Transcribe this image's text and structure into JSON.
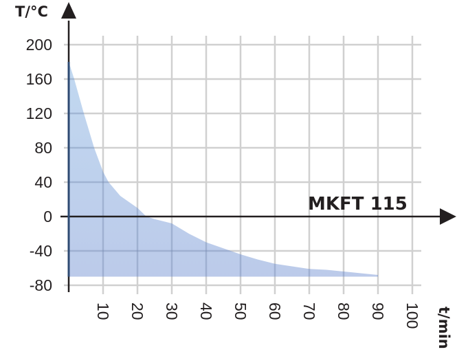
{
  "chart_data": {
    "type": "area",
    "title": "",
    "series_label": "MKFT 115",
    "xlabel": "t/min",
    "ylabel": "T/°C",
    "xlim": [
      0,
      100
    ],
    "ylim": [
      -80,
      200
    ],
    "x_ticks": [
      10,
      20,
      30,
      40,
      50,
      60,
      70,
      80,
      90,
      100
    ],
    "y_ticks": [
      200,
      160,
      120,
      80,
      40,
      0,
      -40,
      -80
    ],
    "grid": true,
    "legend": "none",
    "fill_floor": -70,
    "series": [
      {
        "name": "MKFT 115",
        "x": [
          0,
          1.6,
          4.4,
          7.4,
          10,
          11.6,
          15,
          20,
          22.6,
          25,
          30,
          35,
          40,
          45,
          50,
          55,
          60,
          65,
          70,
          75,
          80,
          85,
          90
        ],
        "values": [
          180,
          160,
          120,
          80,
          52,
          40,
          24,
          10,
          0,
          -3,
          -8,
          -20,
          -30,
          -37,
          -44,
          -50,
          -55,
          -58,
          -61,
          -62,
          -64,
          -66,
          -68
        ]
      }
    ]
  },
  "colors": {
    "fill_top": "#bcd5ef",
    "fill_bottom": "#b6c6e8",
    "grid": "#d0d0d0",
    "axis": "#231f20",
    "text": "#231f20"
  }
}
